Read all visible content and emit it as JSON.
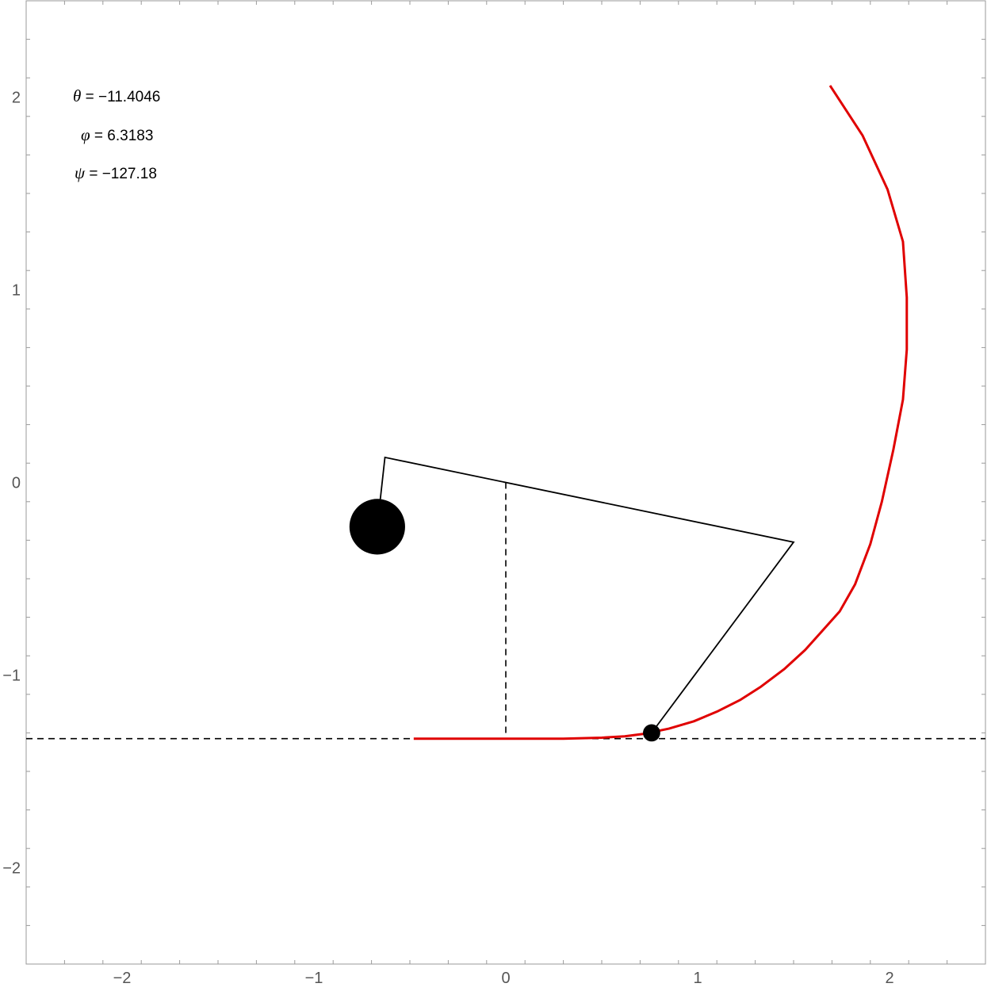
{
  "chart_data": {
    "type": "line",
    "xlim": [
      -2.5,
      2.5
    ],
    "ylim": [
      -2.5,
      2.5
    ],
    "x_ticks": [
      {
        "value": -2,
        "label": "−2"
      },
      {
        "value": -1,
        "label": "−1"
      },
      {
        "value": 0,
        "label": "0"
      },
      {
        "value": 1,
        "label": "1"
      },
      {
        "value": 2,
        "label": "2"
      }
    ],
    "y_ticks": [
      {
        "value": 2,
        "label": "2"
      },
      {
        "value": 1,
        "label": "1"
      },
      {
        "value": 0,
        "label": "0"
      },
      {
        "value": -1,
        "label": "−1"
      },
      {
        "value": -2,
        "label": "−2"
      }
    ],
    "minor_step": 0.2,
    "ground_y": -1.33,
    "pivot": [
      0,
      0
    ],
    "mechanism": {
      "arm_corner_left": [
        -0.63,
        0.13
      ],
      "arm_corner_right": [
        1.5,
        -0.31
      ],
      "mass_center": [
        -0.67,
        -0.23
      ],
      "mass_radius": 0.145,
      "contact_point": [
        0.76,
        -1.3
      ],
      "contact_radius": 0.045
    },
    "trajectory": {
      "color": "#e00000",
      "points": [
        [
          -0.48,
          -1.33
        ],
        [
          0.0,
          -1.33
        ],
        [
          0.3,
          -1.33
        ],
        [
          0.5,
          -1.325
        ],
        [
          0.62,
          -1.318
        ],
        [
          0.72,
          -1.305
        ],
        [
          0.85,
          -1.278
        ],
        [
          0.98,
          -1.24
        ],
        [
          1.1,
          -1.19
        ],
        [
          1.22,
          -1.13
        ],
        [
          1.33,
          -1.06
        ],
        [
          1.45,
          -0.97
        ],
        [
          1.56,
          -0.87
        ],
        [
          1.65,
          -0.77
        ],
        [
          1.74,
          -0.67
        ],
        [
          1.82,
          -0.53
        ],
        [
          1.9,
          -0.32
        ],
        [
          1.96,
          -0.1
        ],
        [
          2.02,
          0.17
        ],
        [
          2.07,
          0.43
        ],
        [
          2.09,
          0.69
        ],
        [
          2.09,
          0.96
        ],
        [
          2.07,
          1.25
        ],
        [
          1.99,
          1.52
        ],
        [
          1.86,
          1.8
        ],
        [
          1.69,
          2.06
        ]
      ]
    },
    "annotations": [
      {
        "symbol": "θ",
        "text": " = −11.4046"
      },
      {
        "symbol": "φ",
        "text": " = 6.3183"
      },
      {
        "symbol": "ψ",
        "text": " = −127.18"
      }
    ]
  }
}
